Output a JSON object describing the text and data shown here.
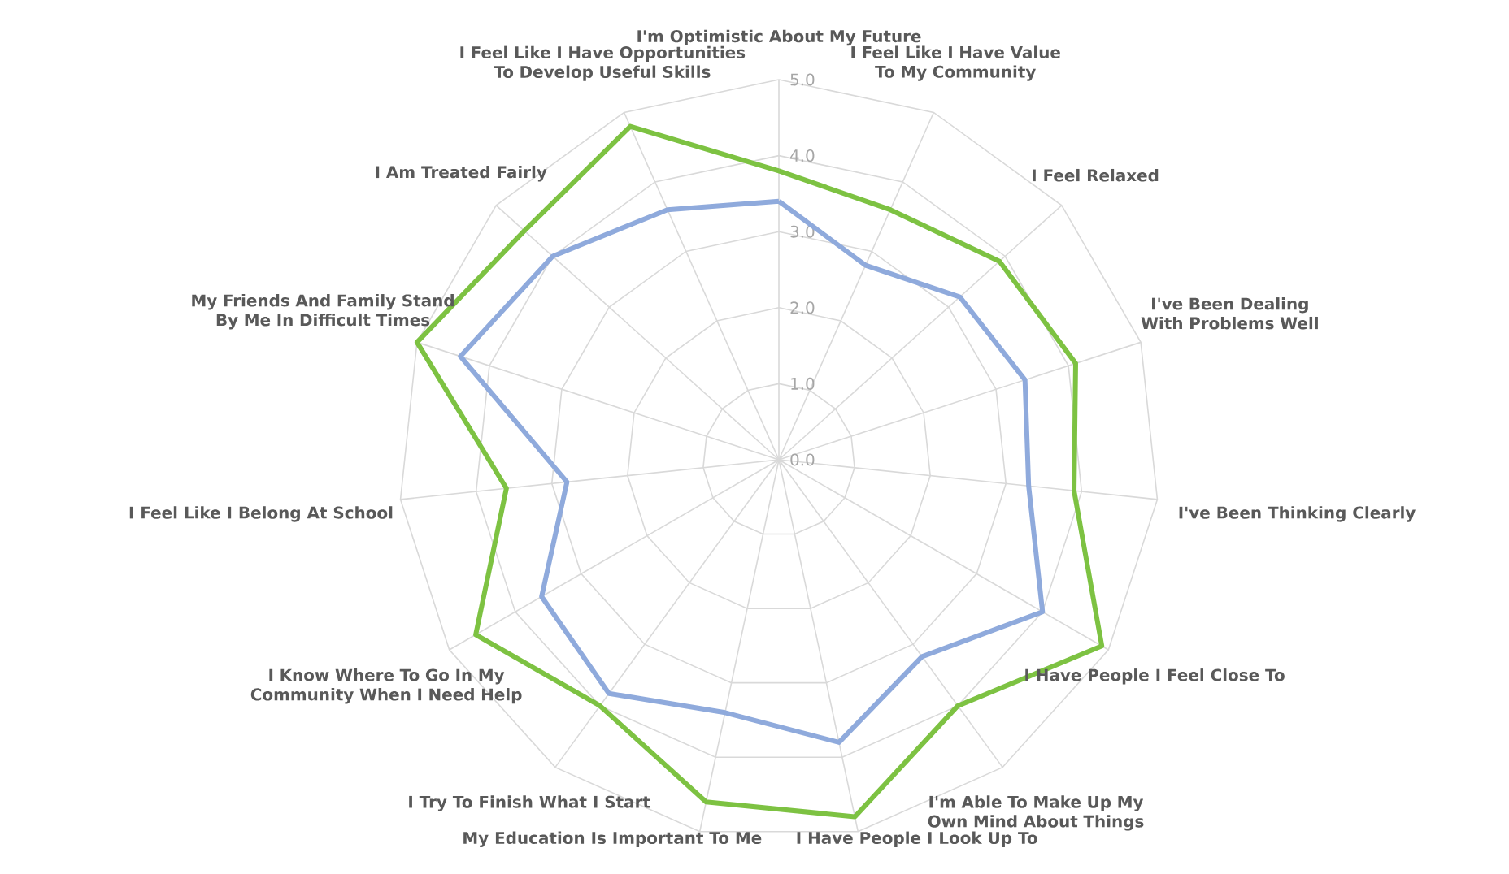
{
  "chart_data": {
    "type": "radar",
    "categories": [
      "I'm Optimistic About My Future",
      "I Feel Like I Have Value To My Community",
      "I Feel Relaxed",
      "I've Been Dealing With Problems Well",
      "I've Been Thinking Clearly",
      "I Have People I Feel Close To",
      "I'm Able To Make Up My Own Mind About Things",
      "I Have People I Look Up To",
      "My Education Is Important To Me",
      "I Try To Finish What I Start",
      "I Know Where To Go In My Community When I Need Help",
      "I Feel Like I Belong At School",
      "My Friends And Family Stand By Me In Difficult Times",
      "I Am Treated Fairly",
      "I Feel Like I Have Opportunities To Develop Useful Skills"
    ],
    "series": [
      {
        "color": "#8faadc",
        "values": [
          3.4,
          2.8,
          3.2,
          3.4,
          3.3,
          4.0,
          3.2,
          3.8,
          3.4,
          3.8,
          3.6,
          2.8,
          4.4,
          4.0,
          3.6
        ]
      },
      {
        "color": "#7dc242",
        "values": [
          3.8,
          3.6,
          3.9,
          4.1,
          3.9,
          4.9,
          4.0,
          4.8,
          4.6,
          4.0,
          4.6,
          3.6,
          5.0,
          4.5,
          4.8
        ]
      }
    ],
    "ylim": [
      0,
      5
    ],
    "yticks": [
      {
        "value": 0,
        "label": "0.0"
      },
      {
        "value": 1,
        "label": "1.0"
      },
      {
        "value": 2,
        "label": "2.0"
      },
      {
        "value": 3,
        "label": "3.0"
      },
      {
        "value": 4,
        "label": "4.0"
      },
      {
        "value": 5,
        "label": "5.0"
      }
    ],
    "grid": true
  }
}
